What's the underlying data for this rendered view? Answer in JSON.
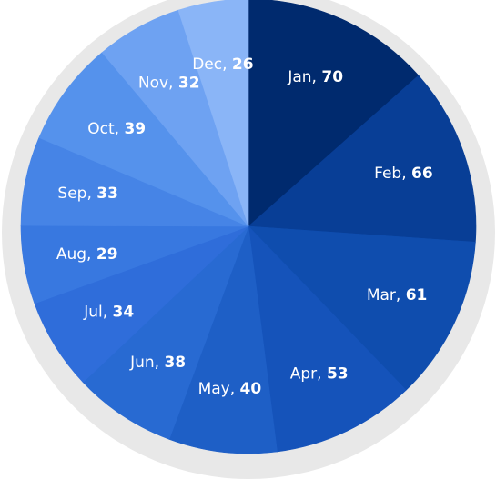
{
  "chart_data": {
    "type": "pie",
    "categories": [
      "Jan",
      "Feb",
      "Mar",
      "Apr",
      "May",
      "Jun",
      "Jul",
      "Aug",
      "Sep",
      "Oct",
      "Nov",
      "Dec"
    ],
    "values": [
      70,
      66,
      61,
      53,
      40,
      38,
      34,
      29,
      33,
      39,
      32,
      26
    ],
    "colors": [
      "#002a6e",
      "#083e96",
      "#0f4dae",
      "#1553ba",
      "#1e5fc6",
      "#286ad2",
      "#2f6dda",
      "#3878e0",
      "#4684e6",
      "#5592ec",
      "#6ea2f2",
      "#8ab5f7"
    ],
    "start_angle": "12 o'clock",
    "direction": "clockwise",
    "label_separator": ", ",
    "legend": "none",
    "outer_ring_color": "#e8e8e8"
  }
}
